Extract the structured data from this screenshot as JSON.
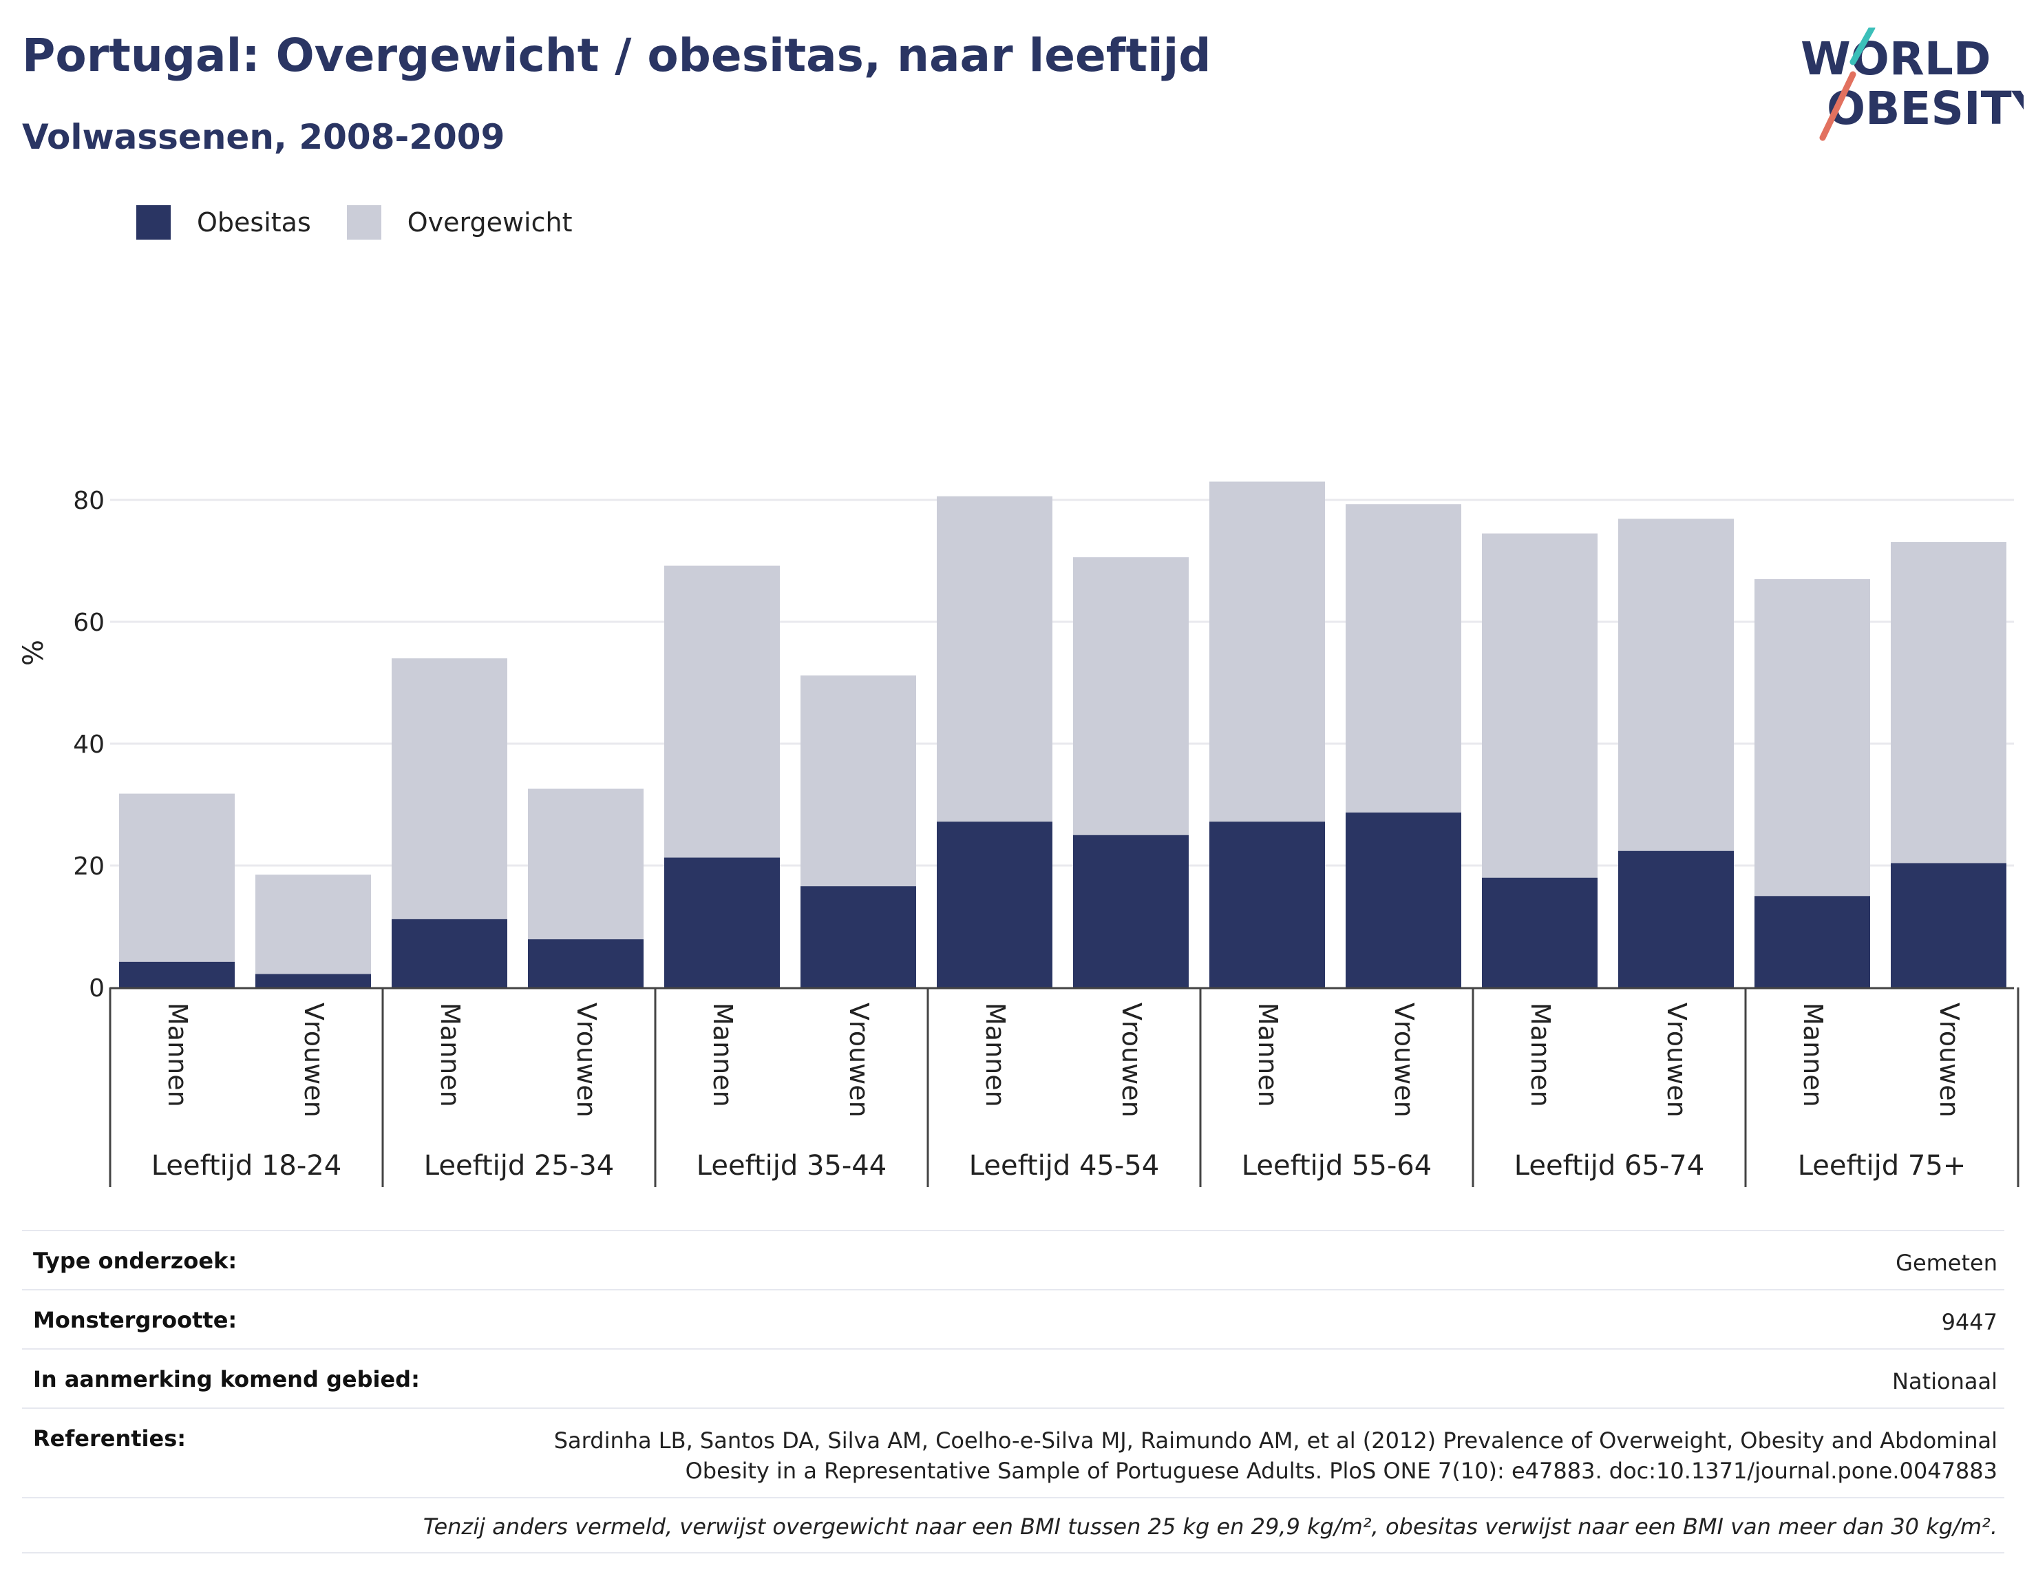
{
  "header": {
    "title": "Portugal: Overgewicht / obesitas, naar leeftijd",
    "subtitle": "Volwassenen, 2008-2009"
  },
  "logo": {
    "line1": "WORLD",
    "line2": "OBESITY",
    "icon": "world-obesity-logo"
  },
  "colors": {
    "obesitas": "#2a3563",
    "overgewicht": "#cbcdd8",
    "brand": "#2a3563",
    "accent_teal": "#3bbfb9",
    "accent_red": "#e2715f"
  },
  "chart_data": {
    "type": "bar",
    "stacked": true,
    "ylabel": "%",
    "ylim": [
      0,
      90
    ],
    "yticks": [
      0,
      20,
      40,
      60,
      80
    ],
    "grid": true,
    "legend_position": "top-left",
    "groups": [
      "Leeftijd 18-24",
      "Leeftijd 25-34",
      "Leeftijd 35-44",
      "Leeftijd 45-54",
      "Leeftijd 55-64",
      "Leeftijd 65-74",
      "Leeftijd 75+"
    ],
    "subcategories": [
      "Mannen",
      "Vrouwen"
    ],
    "series": [
      {
        "name": "Obesitas",
        "values": [
          4.2,
          2.2,
          11.2,
          7.9,
          21.3,
          16.6,
          27.2,
          25.0,
          27.2,
          28.7,
          18.0,
          22.4,
          15.0,
          20.4
        ]
      },
      {
        "name": "Overgewicht",
        "values": [
          27.6,
          16.3,
          42.8,
          24.7,
          47.9,
          34.6,
          53.4,
          45.6,
          55.8,
          50.6,
          56.5,
          54.5,
          52.0,
          52.7
        ]
      }
    ]
  },
  "info": {
    "rows": [
      {
        "label": "Type onderzoek:",
        "value": "Gemeten"
      },
      {
        "label": "Monstergrootte:",
        "value": "9447"
      },
      {
        "label": "In aanmerking komend gebied:",
        "value": "Nationaal"
      },
      {
        "label": "Referenties:",
        "value": "Sardinha LB, Santos DA, Silva AM, Coelho-e-Silva MJ, Raimundo AM, et al (2012) Prevalence of Overweight, Obesity and Abdominal",
        "value2": "Obesity in a Representative Sample of Portuguese Adults. PloS ONE 7(10): e47883. doc:10.1371/journal.pone.0047883"
      }
    ],
    "note": "Tenzij anders vermeld, verwijst overgewicht naar een BMI tussen 25 kg en 29,9 kg/m², obesitas verwijst naar een BMI van meer dan 30 kg/m²."
  }
}
